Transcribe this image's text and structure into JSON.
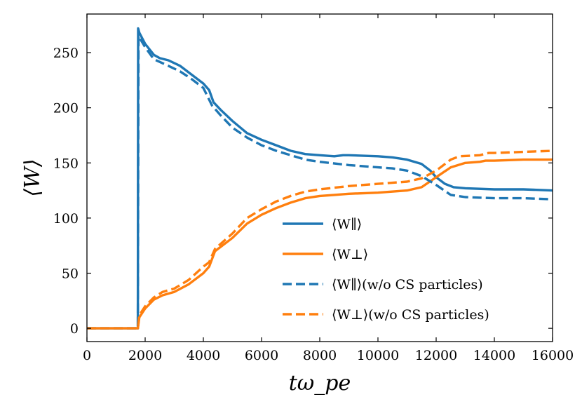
{
  "chart_data": {
    "type": "line",
    "title": "",
    "xlabel": "tω_pe",
    "ylabel": "⟨W⟩",
    "xlim": [
      0,
      16000
    ],
    "ylim": [
      -12,
      285
    ],
    "xticks": [
      0,
      2000,
      4000,
      6000,
      8000,
      10000,
      12000,
      14000,
      16000
    ],
    "yticks": [
      0,
      50,
      100,
      150,
      200,
      250
    ],
    "grid": false,
    "legend_position": "lower-right",
    "series": [
      {
        "name": "⟨W∥⟩",
        "color": "#1f77b4",
        "dashed": false,
        "points": [
          [
            0,
            0
          ],
          [
            1700,
            0
          ],
          [
            1750,
            0
          ],
          [
            1760,
            272
          ],
          [
            1800,
            268
          ],
          [
            2000,
            258
          ],
          [
            2300,
            248
          ],
          [
            2500,
            245
          ],
          [
            2800,
            243
          ],
          [
            3200,
            238
          ],
          [
            3600,
            230
          ],
          [
            4000,
            222
          ],
          [
            4200,
            216
          ],
          [
            4350,
            205
          ],
          [
            4600,
            198
          ],
          [
            5000,
            188
          ],
          [
            5500,
            177
          ],
          [
            6000,
            171
          ],
          [
            6500,
            166
          ],
          [
            7000,
            161
          ],
          [
            7500,
            158
          ],
          [
            8000,
            157
          ],
          [
            8500,
            156
          ],
          [
            8800,
            157
          ],
          [
            9000,
            157
          ],
          [
            10000,
            156
          ],
          [
            10500,
            155
          ],
          [
            11000,
            153
          ],
          [
            11500,
            149
          ],
          [
            11800,
            143
          ],
          [
            12000,
            137
          ],
          [
            12300,
            131
          ],
          [
            12600,
            128
          ],
          [
            13000,
            127
          ],
          [
            14000,
            126
          ],
          [
            15000,
            126
          ],
          [
            16000,
            125
          ]
        ]
      },
      {
        "name": "⟨W⊥⟩",
        "color": "#ff7f0e",
        "dashed": false,
        "points": [
          [
            0,
            0
          ],
          [
            1700,
            0
          ],
          [
            1750,
            0
          ],
          [
            1800,
            10
          ],
          [
            2000,
            18
          ],
          [
            2300,
            26
          ],
          [
            2600,
            30
          ],
          [
            3000,
            33
          ],
          [
            3500,
            40
          ],
          [
            4000,
            50
          ],
          [
            4200,
            56
          ],
          [
            4400,
            70
          ],
          [
            5000,
            82
          ],
          [
            5500,
            95
          ],
          [
            6000,
            103
          ],
          [
            6500,
            109
          ],
          [
            7000,
            114
          ],
          [
            7500,
            118
          ],
          [
            8000,
            120
          ],
          [
            8500,
            121
          ],
          [
            9000,
            122
          ],
          [
            10000,
            123
          ],
          [
            11000,
            125
          ],
          [
            11500,
            128
          ],
          [
            12000,
            137
          ],
          [
            12500,
            146
          ],
          [
            13000,
            150
          ],
          [
            13500,
            151
          ],
          [
            13700,
            152
          ],
          [
            14000,
            152
          ],
          [
            15000,
            153
          ],
          [
            16000,
            153
          ]
        ]
      },
      {
        "name": "⟨W∥⟩(w/o CS particles)",
        "color": "#1f77b4",
        "dashed": true,
        "points": [
          [
            0,
            0
          ],
          [
            1700,
            0
          ],
          [
            1750,
            0
          ],
          [
            1770,
            265
          ],
          [
            2000,
            255
          ],
          [
            2300,
            244
          ],
          [
            2800,
            238
          ],
          [
            3200,
            233
          ],
          [
            3600,
            226
          ],
          [
            4000,
            218
          ],
          [
            4150,
            210
          ],
          [
            4300,
            202
          ],
          [
            4600,
            193
          ],
          [
            5000,
            182
          ],
          [
            5500,
            173
          ],
          [
            6000,
            166
          ],
          [
            6500,
            161
          ],
          [
            7000,
            157
          ],
          [
            7500,
            153
          ],
          [
            8000,
            151
          ],
          [
            9000,
            148
          ],
          [
            10000,
            146
          ],
          [
            10500,
            145
          ],
          [
            11000,
            143
          ],
          [
            11500,
            138
          ],
          [
            12000,
            130
          ],
          [
            12500,
            121
          ],
          [
            13000,
            119
          ],
          [
            14000,
            118
          ],
          [
            15000,
            118
          ],
          [
            16000,
            117
          ]
        ]
      },
      {
        "name": "⟨W⊥⟩(w/o CS particles)",
        "color": "#ff7f0e",
        "dashed": true,
        "points": [
          [
            0,
            0
          ],
          [
            1700,
            0
          ],
          [
            1750,
            0
          ],
          [
            1800,
            12
          ],
          [
            2000,
            20
          ],
          [
            2300,
            28
          ],
          [
            2600,
            33
          ],
          [
            3000,
            36
          ],
          [
            3500,
            44
          ],
          [
            4000,
            56
          ],
          [
            4200,
            60
          ],
          [
            4400,
            72
          ],
          [
            5000,
            86
          ],
          [
            5500,
            100
          ],
          [
            6000,
            108
          ],
          [
            6500,
            115
          ],
          [
            7000,
            120
          ],
          [
            7500,
            124
          ],
          [
            8000,
            126
          ],
          [
            9000,
            129
          ],
          [
            10000,
            131
          ],
          [
            11000,
            133
          ],
          [
            11500,
            136
          ],
          [
            12000,
            143
          ],
          [
            12500,
            153
          ],
          [
            12800,
            156
          ],
          [
            13500,
            157
          ],
          [
            13800,
            159
          ],
          [
            14000,
            159
          ],
          [
            15000,
            160
          ],
          [
            16000,
            161
          ]
        ]
      }
    ]
  }
}
